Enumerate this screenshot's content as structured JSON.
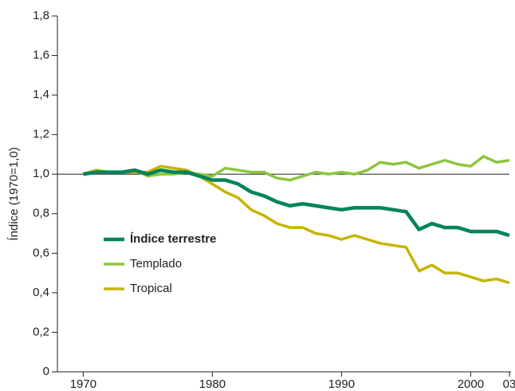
{
  "chart_data": {
    "type": "line",
    "y_label": "Índice (1970=1,0)",
    "x": [
      1970,
      1971,
      1972,
      1973,
      1974,
      1975,
      1976,
      1977,
      1978,
      1979,
      1980,
      1981,
      1982,
      1983,
      1984,
      1985,
      1986,
      1987,
      1988,
      1989,
      1990,
      1991,
      1992,
      1993,
      1994,
      1995,
      1996,
      1997,
      1998,
      1999,
      2000,
      2001,
      2002,
      2003
    ],
    "series": [
      {
        "name": "Índice terrestre",
        "color": "#00845a",
        "values": [
          1.0,
          1.01,
          1.01,
          1.01,
          1.02,
          1.0,
          1.02,
          1.01,
          1.01,
          0.99,
          0.97,
          0.97,
          0.95,
          0.91,
          0.89,
          0.86,
          0.84,
          0.85,
          0.84,
          0.83,
          0.82,
          0.83,
          0.83,
          0.83,
          0.82,
          0.81,
          0.72,
          0.75,
          0.73,
          0.73,
          0.71,
          0.71,
          0.71,
          0.69
        ]
      },
      {
        "name": "Templado",
        "color": "#8cc63e",
        "values": [
          1.0,
          1.01,
          1.01,
          1.01,
          1.02,
          0.99,
          1.0,
          1.0,
          1.01,
          1.0,
          0.99,
          1.03,
          1.02,
          1.01,
          1.01,
          0.98,
          0.97,
          0.99,
          1.01,
          1.0,
          1.01,
          1.0,
          1.02,
          1.06,
          1.05,
          1.06,
          1.03,
          1.05,
          1.07,
          1.05,
          1.04,
          1.09,
          1.06,
          1.07
        ]
      },
      {
        "name": "Tropical",
        "color": "#c6b400",
        "values": [
          1.0,
          1.02,
          1.01,
          1.01,
          1.01,
          1.01,
          1.04,
          1.03,
          1.02,
          0.99,
          0.95,
          0.91,
          0.88,
          0.82,
          0.79,
          0.75,
          0.73,
          0.73,
          0.7,
          0.69,
          0.67,
          0.69,
          0.67,
          0.65,
          0.64,
          0.63,
          0.51,
          0.54,
          0.5,
          0.5,
          0.48,
          0.46,
          0.47,
          0.45
        ]
      }
    ],
    "xlim": [
      1968,
      2003
    ],
    "xticks": [
      1970,
      1980,
      1990,
      2000,
      {
        "value": 2003,
        "label": "03"
      }
    ],
    "ylim": [
      0,
      1.8
    ],
    "yticks": [
      0,
      {
        "value": 0.2,
        "label": "0,2"
      },
      {
        "value": 0.4,
        "label": "0,4"
      },
      {
        "value": 0.6,
        "label": "0,6"
      },
      {
        "value": 0.8,
        "label": "0,8"
      },
      {
        "value": 1,
        "label": "1,0"
      },
      {
        "value": 1.2,
        "label": "1,2"
      },
      {
        "value": 1.4,
        "label": "1,4"
      },
      {
        "value": 1.6,
        "label": "1,6"
      },
      {
        "value": 1.8,
        "label": "1,8"
      }
    ],
    "reference_line": 1,
    "legend": "center-left"
  }
}
